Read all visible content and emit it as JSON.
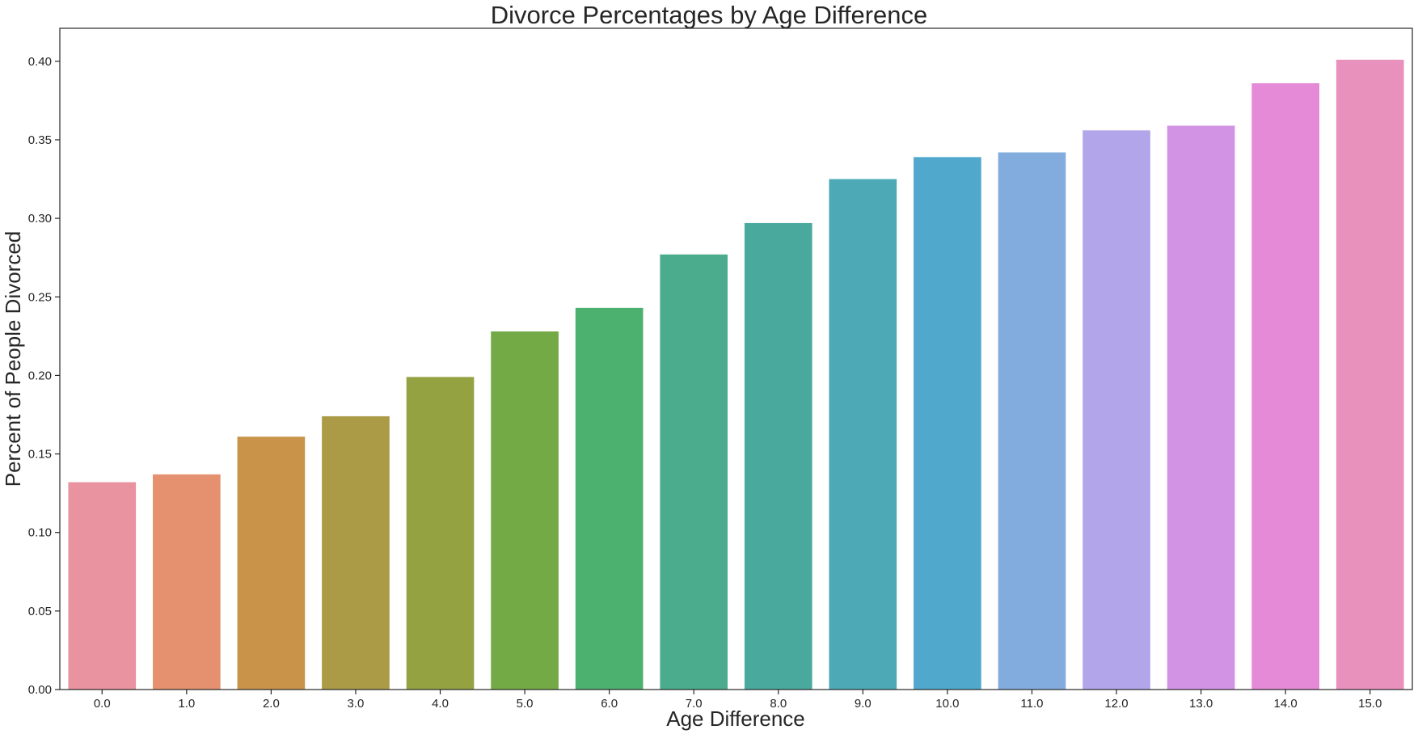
{
  "chart_data": {
    "type": "bar",
    "title": "Divorce Percentages by Age Difference",
    "xlabel": "Age Difference",
    "ylabel": "Percent of People Divorced",
    "categories": [
      "0.0",
      "1.0",
      "2.0",
      "3.0",
      "4.0",
      "5.0",
      "6.0",
      "7.0",
      "8.0",
      "9.0",
      "10.0",
      "11.0",
      "12.0",
      "13.0",
      "14.0",
      "15.0"
    ],
    "values": [
      0.132,
      0.137,
      0.161,
      0.174,
      0.199,
      0.228,
      0.243,
      0.277,
      0.297,
      0.325,
      0.339,
      0.342,
      0.356,
      0.359,
      0.386,
      0.401
    ],
    "ylim": [
      0,
      0.421
    ],
    "yticks": [
      0.0,
      0.05,
      0.1,
      0.15,
      0.2,
      0.25,
      0.3,
      0.35,
      0.4
    ],
    "ytick_labels": [
      "0.00",
      "0.05",
      "0.10",
      "0.15",
      "0.20",
      "0.25",
      "0.30",
      "0.35",
      "0.40"
    ],
    "grid": false,
    "legend": "none",
    "colors": [
      "#e8939f",
      "#e5916f",
      "#c9944a",
      "#ab9a46",
      "#94a242",
      "#74aa45",
      "#4cb06e",
      "#4aac8d",
      "#4aa99d",
      "#4ca9b5",
      "#50a9cc",
      "#82acde",
      "#b3a5ea",
      "#d393e4",
      "#e58ad6",
      "#e891bd"
    ]
  }
}
